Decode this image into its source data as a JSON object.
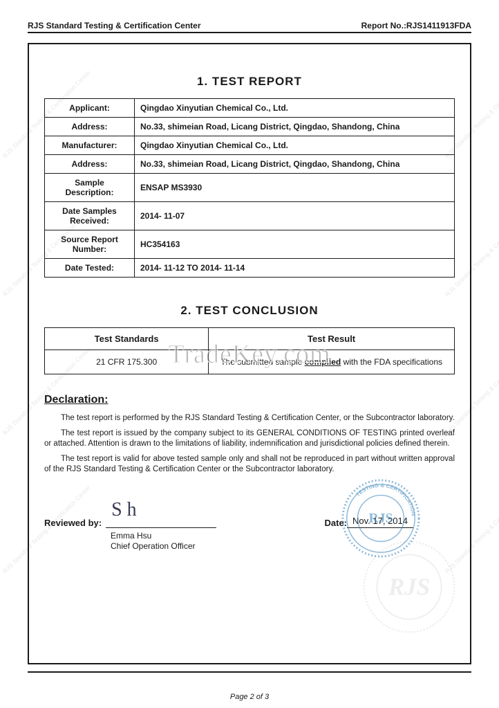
{
  "header": {
    "left": "RJS Standard Testing & Certification Center",
    "right": "Report No.:RJS1411913FDA"
  },
  "section1": {
    "title": "1.   TEST REPORT",
    "rows": [
      {
        "label": "Applicant:",
        "value": "Qingdao Xinyutian Chemical Co., Ltd."
      },
      {
        "label": "Address:",
        "value": "No.33, shimeian Road, Licang District, Qingdao, Shandong, China"
      },
      {
        "label": "Manufacturer:",
        "value": "Qingdao Xinyutian Chemical Co., Ltd."
      },
      {
        "label": "Address:",
        "value": "No.33, shimeian Road, Licang District, Qingdao, Shandong, China"
      },
      {
        "label": "Sample Description:",
        "value": "ENSAP MS3930"
      },
      {
        "label": "Date Samples Received:",
        "value": "2014- 11-07"
      },
      {
        "label": "Source Report Number:",
        "value": "HC354163"
      },
      {
        "label": "Date Tested:",
        "value": "2014- 11-12 TO 2014- 11-14"
      }
    ]
  },
  "section2": {
    "title": "2.   TEST CONCLUSION",
    "head_standards": "Test Standards",
    "head_result": "Test Result",
    "standard": "21 CFR 175.300",
    "result_prefix": "The submitted sample ",
    "result_keyword": "complied",
    "result_suffix": " with the FDA specifications"
  },
  "declaration": {
    "title": "Declaration:",
    "p1": "The test report is performed by the RJS Standard Testing & Certification Center, or the Subcontractor laboratory.",
    "p2": "The test report is issued by the company subject to its GENERAL CONDITIONS OF TESTING printed overleaf or attached. Attention is drawn to the limitations of liability, indemnification and jurisdictional policies defined therein.",
    "p3": "The test report is valid for above tested sample only and shall not be reproduced in part without written approval of the RJS Standard Testing & Certification Center or the Subcontractor laboratory."
  },
  "signature": {
    "reviewed_label": "Reviewed by:",
    "date_label": "Date:",
    "date_value": "Nov. 17, 2014",
    "name": "Emma Hsu",
    "title": "Chief Operation Officer"
  },
  "stamp": {
    "outer_text": "TESTING & CERTIFICATION",
    "org": "RJS",
    "color": "#2e7db6"
  },
  "footer": {
    "page": "Page 2 of 3"
  },
  "overlay_watermark": "TradeKey.com",
  "bg_watermark_text": "RJS Standard Testing & Certification Center",
  "colors": {
    "text": "#1a1a1a",
    "paper": "#ffffff",
    "wm": "#e6e8eb",
    "stamp": "#2e7db6"
  }
}
